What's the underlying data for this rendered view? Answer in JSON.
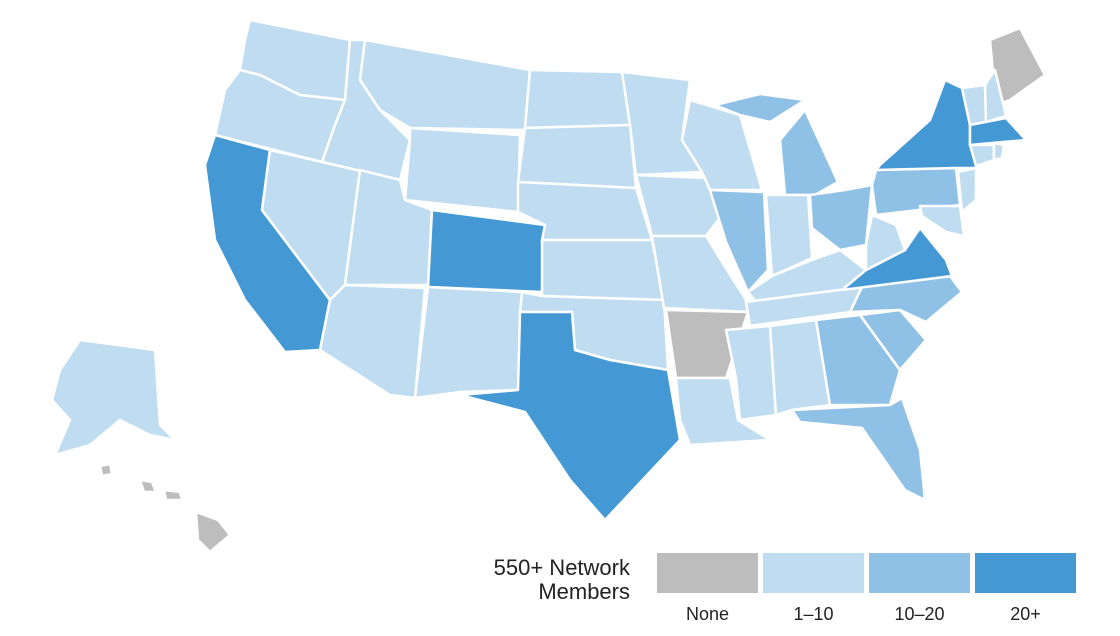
{
  "legend": {
    "title": "550+ Network Members",
    "bins": [
      {
        "label": "None",
        "color": "#bdbdbd"
      },
      {
        "label": "1–10",
        "color": "#bfdcf1"
      },
      {
        "label": "10–20",
        "color": "#8fc0e6"
      },
      {
        "label": "20+",
        "color": "#4499d5"
      }
    ]
  }
}
